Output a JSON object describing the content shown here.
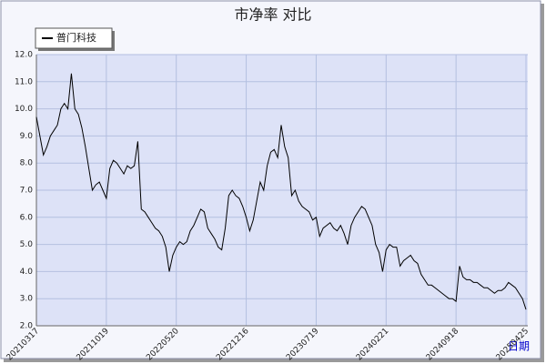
{
  "chart_data": {
    "type": "line",
    "title": "市净率  对比",
    "x_label": "日期",
    "categories": [
      "20210317",
      null,
      null,
      null,
      null,
      null,
      null,
      null,
      null,
      null,
      null,
      null,
      null,
      null,
      null,
      null,
      null,
      null,
      null,
      null,
      "20211019",
      null,
      null,
      null,
      null,
      null,
      null,
      null,
      null,
      null,
      null,
      null,
      null,
      null,
      null,
      null,
      null,
      null,
      null,
      null,
      "20220520",
      null,
      null,
      null,
      null,
      null,
      null,
      null,
      null,
      null,
      null,
      null,
      null,
      null,
      null,
      null,
      null,
      null,
      null,
      null,
      "20221216",
      null,
      null,
      null,
      null,
      null,
      null,
      null,
      null,
      null,
      null,
      null,
      null,
      null,
      null,
      null,
      null,
      null,
      null,
      null,
      "20230719",
      null,
      null,
      null,
      null,
      null,
      null,
      null,
      null,
      null,
      null,
      null,
      null,
      null,
      null,
      null,
      null,
      null,
      null,
      null,
      "20240221",
      null,
      null,
      null,
      null,
      null,
      null,
      null,
      null,
      null,
      null,
      null,
      null,
      null,
      null,
      null,
      null,
      null,
      null,
      null,
      "20240918",
      null,
      null,
      null,
      null,
      null,
      null,
      null,
      null,
      null,
      null,
      null,
      null,
      null,
      null,
      null,
      null,
      null,
      null,
      null,
      "20250425"
    ],
    "series": [
      {
        "name": "普门科技",
        "color": "#000000",
        "values": [
          9.7,
          9.0,
          8.3,
          8.6,
          9.0,
          9.2,
          9.4,
          10.0,
          10.2,
          10.0,
          11.3,
          10.0,
          9.8,
          9.3,
          8.6,
          7.8,
          7.0,
          7.2,
          7.3,
          7.0,
          6.7,
          7.8,
          8.1,
          8.0,
          7.8,
          7.6,
          7.9,
          7.8,
          7.9,
          8.8,
          6.3,
          6.2,
          6.0,
          5.8,
          5.6,
          5.5,
          5.3,
          4.9,
          4.0,
          4.6,
          4.9,
          5.1,
          5.0,
          5.1,
          5.5,
          5.7,
          6.0,
          6.3,
          6.2,
          5.6,
          5.4,
          5.2,
          4.9,
          4.8,
          5.6,
          6.8,
          7.0,
          6.8,
          6.7,
          6.4,
          6.0,
          5.5,
          5.9,
          6.6,
          7.3,
          7.0,
          7.9,
          8.4,
          8.5,
          8.2,
          9.4,
          8.6,
          8.2,
          6.8,
          7.0,
          6.6,
          6.4,
          6.3,
          6.2,
          5.9,
          6.0,
          5.3,
          5.6,
          5.7,
          5.8,
          5.6,
          5.5,
          5.7,
          5.4,
          5.0,
          5.7,
          6.0,
          6.2,
          6.4,
          6.3,
          6.0,
          5.7,
          5.0,
          4.7,
          4.0,
          4.8,
          5.0,
          4.9,
          4.9,
          4.2,
          4.4,
          4.5,
          4.6,
          4.4,
          4.3,
          3.9,
          3.7,
          3.5,
          3.5,
          3.4,
          3.3,
          3.2,
          3.1,
          3.0,
          3.0,
          2.9,
          4.2,
          3.8,
          3.7,
          3.7,
          3.6,
          3.6,
          3.5,
          3.4,
          3.4,
          3.3,
          3.2,
          3.3,
          3.3,
          3.4,
          3.6,
          3.5,
          3.4,
          3.2,
          3.0,
          2.6
        ]
      }
    ],
    "ylim": [
      2,
      12
    ],
    "yticks": [
      {
        "value": 2,
        "label": "2.0"
      },
      {
        "value": 3,
        "label": "3.0"
      },
      {
        "value": 4,
        "label": "4.0"
      },
      {
        "value": 5,
        "label": "5.0"
      },
      {
        "value": 6,
        "label": "6.0"
      },
      {
        "value": 7,
        "label": "7.0"
      },
      {
        "value": 8,
        "label": "8.0"
      },
      {
        "value": 9,
        "label": "9.0"
      },
      {
        "value": 10,
        "label": "10.0"
      },
      {
        "value": 11,
        "label": "11.0"
      },
      {
        "value": 12,
        "label": "12.0"
      }
    ],
    "grid": true
  }
}
